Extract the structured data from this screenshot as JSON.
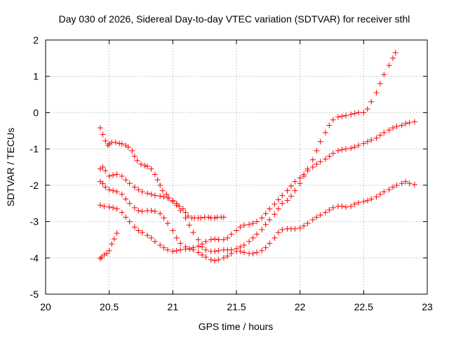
{
  "chart_data": {
    "type": "scatter",
    "title": "Day 030 of 2026, Sidereal Day-to-day VTEC variation (SDTVAR) for receiver sthl",
    "xlabel": "GPS time / hours",
    "ylabel": "SDTVAR / TECUs",
    "xlim": [
      20,
      23
    ],
    "ylim": [
      -5,
      2
    ],
    "xticks": [
      20,
      20.5,
      21,
      21.5,
      22,
      22.5,
      23
    ],
    "xtick_labels": [
      "20",
      "20.5",
      "21",
      "21.5",
      "22",
      "22.5",
      "23"
    ],
    "yticks": [
      -5,
      -4,
      -3,
      -2,
      -1,
      0,
      1,
      2
    ],
    "ytick_labels": [
      "-5",
      "-4",
      "-3",
      "-2",
      "-1",
      "0",
      "1",
      "2"
    ],
    "grid": true,
    "marker": "+",
    "color": "#ff0000",
    "series": [
      {
        "x": [
          20.43,
          20.45,
          20.47,
          20.49,
          20.5,
          20.52,
          20.55,
          20.58,
          20.6,
          20.63,
          20.65,
          20.68,
          20.7,
          20.72,
          20.75,
          20.78,
          20.8,
          20.83,
          20.86,
          20.88,
          20.9,
          20.92,
          20.95,
          20.97,
          21.0,
          21.03,
          21.05,
          21.08,
          21.1,
          21.12,
          21.15,
          21.17,
          21.2,
          21.22,
          21.25,
          21.28,
          21.3,
          21.33,
          21.35,
          21.38,
          21.4
        ],
        "y": [
          -0.42,
          -0.6,
          -0.78,
          -0.9,
          -0.86,
          -0.82,
          -0.82,
          -0.85,
          -0.86,
          -0.9,
          -0.95,
          -1.05,
          -1.2,
          -1.32,
          -1.42,
          -1.46,
          -1.48,
          -1.55,
          -1.7,
          -1.85,
          -2.0,
          -2.15,
          -2.25,
          -2.35,
          -2.42,
          -2.5,
          -2.58,
          -2.65,
          -2.75,
          -2.85,
          -2.9,
          -2.9,
          -2.9,
          -2.9,
          -2.88,
          -2.88,
          -2.9,
          -2.9,
          -2.88,
          -2.88,
          -2.88
        ]
      },
      {
        "x": [
          20.43,
          20.45,
          20.47,
          20.5,
          20.53,
          20.56,
          20.6,
          20.63,
          20.66,
          20.7,
          20.73,
          20.76,
          20.8,
          20.83,
          20.86,
          20.9,
          20.93,
          20.96,
          21.0,
          21.03,
          21.06,
          21.1,
          21.13,
          21.16,
          21.2,
          21.23,
          21.26,
          21.3,
          21.33,
          21.36,
          21.4,
          21.43,
          21.46,
          21.5,
          21.53,
          21.56,
          21.6,
          21.63,
          21.66,
          21.7,
          21.73,
          21.76,
          21.8,
          21.83,
          21.86,
          21.9,
          21.93,
          21.96,
          22.0,
          22.03,
          22.06,
          22.1,
          22.13,
          22.16,
          22.2,
          22.23,
          22.26,
          22.3,
          22.33,
          22.36,
          22.4,
          22.43,
          22.46,
          22.5,
          22.53,
          22.56,
          22.6,
          22.63,
          22.66,
          22.7,
          22.73,
          22.75
        ],
        "y": [
          -1.55,
          -1.5,
          -1.6,
          -1.75,
          -1.72,
          -1.7,
          -1.75,
          -1.85,
          -1.95,
          -2.05,
          -2.12,
          -2.18,
          -2.22,
          -2.25,
          -2.28,
          -2.3,
          -2.32,
          -2.35,
          -2.45,
          -2.55,
          -2.7,
          -2.9,
          -3.1,
          -3.3,
          -3.5,
          -3.7,
          -3.78,
          -3.82,
          -3.82,
          -3.8,
          -3.78,
          -3.78,
          -3.78,
          -3.75,
          -3.7,
          -3.65,
          -3.55,
          -3.45,
          -3.35,
          -3.22,
          -3.08,
          -2.95,
          -2.8,
          -2.65,
          -2.5,
          -2.42,
          -2.3,
          -2.15,
          -1.95,
          -1.75,
          -1.55,
          -1.3,
          -1.05,
          -0.8,
          -0.55,
          -0.35,
          -0.2,
          -0.12,
          -0.1,
          -0.08,
          -0.05,
          -0.02,
          0.0,
          0.0,
          0.1,
          0.3,
          0.55,
          0.8,
          1.05,
          1.3,
          1.5,
          1.65
        ]
      },
      {
        "x": [
          20.43,
          20.45,
          20.47,
          20.5,
          20.53,
          20.56,
          20.6,
          20.63,
          20.66,
          20.7,
          20.73,
          20.76,
          20.8,
          20.83,
          20.86,
          20.9,
          20.93,
          20.96,
          21.0,
          21.03,
          21.06,
          21.1,
          21.13,
          21.16,
          21.2,
          21.23,
          21.26,
          21.3,
          21.33,
          21.36,
          21.4,
          21.43,
          21.46,
          21.5,
          21.53,
          21.56,
          21.6,
          21.63,
          21.66,
          21.7,
          21.73,
          21.76,
          21.8,
          21.83,
          21.86,
          21.9,
          21.93,
          21.96,
          22.0,
          22.03,
          22.06,
          22.1,
          22.13,
          22.16,
          22.2,
          22.23,
          22.26,
          22.3,
          22.33,
          22.36,
          22.4,
          22.43,
          22.46,
          22.5,
          22.53,
          22.56,
          22.6,
          22.63,
          22.66,
          22.7,
          22.73,
          22.76,
          22.8,
          22.83,
          22.86,
          22.9
        ],
        "y": [
          -1.9,
          -1.95,
          -2.05,
          -2.12,
          -2.15,
          -2.18,
          -2.25,
          -2.38,
          -2.5,
          -2.62,
          -2.7,
          -2.72,
          -2.7,
          -2.7,
          -2.72,
          -2.78,
          -2.9,
          -3.05,
          -3.25,
          -3.45,
          -3.6,
          -3.7,
          -3.75,
          -3.72,
          -3.68,
          -3.62,
          -3.55,
          -3.5,
          -3.48,
          -3.5,
          -3.5,
          -3.45,
          -3.35,
          -3.25,
          -3.15,
          -3.1,
          -3.08,
          -3.05,
          -3.0,
          -2.9,
          -2.78,
          -2.65,
          -2.52,
          -2.4,
          -2.28,
          -2.15,
          -2.02,
          -1.9,
          -1.8,
          -1.7,
          -1.6,
          -1.5,
          -1.42,
          -1.35,
          -1.28,
          -1.2,
          -1.12,
          -1.05,
          -1.02,
          -1.0,
          -0.98,
          -0.95,
          -0.9,
          -0.85,
          -0.8,
          -0.75,
          -0.7,
          -0.62,
          -0.55,
          -0.48,
          -0.42,
          -0.38,
          -0.35,
          -0.3,
          -0.28,
          -0.25
        ]
      },
      {
        "x": [
          20.43,
          20.46,
          20.5,
          20.53,
          20.56,
          20.6,
          20.63,
          20.66,
          20.7,
          20.73,
          20.76,
          20.8,
          20.83,
          20.86,
          20.9,
          20.93,
          20.96,
          21.0,
          21.03,
          21.06,
          21.1,
          21.13,
          21.16,
          21.2,
          21.23,
          21.26,
          21.3,
          21.33,
          21.36,
          21.4,
          21.43,
          21.46,
          21.5,
          21.53,
          21.56,
          21.6,
          21.63,
          21.66,
          21.7,
          21.73,
          21.76,
          21.8,
          21.83,
          21.86,
          21.9,
          21.93,
          21.96,
          22.0,
          22.03,
          22.06,
          22.1,
          22.13,
          22.16,
          22.2,
          22.23,
          22.26,
          22.3,
          22.33,
          22.36,
          22.4,
          22.43,
          22.46,
          22.5,
          22.53,
          22.56,
          22.6,
          22.63,
          22.66,
          22.7,
          22.73,
          22.76,
          22.8,
          22.83,
          22.86,
          22.9
        ],
        "y": [
          -2.55,
          -2.58,
          -2.6,
          -2.62,
          -2.65,
          -2.75,
          -2.88,
          -3.0,
          -3.15,
          -3.25,
          -3.3,
          -3.38,
          -3.45,
          -3.55,
          -3.65,
          -3.72,
          -3.78,
          -3.82,
          -3.8,
          -3.78,
          -3.76,
          -3.75,
          -3.78,
          -3.85,
          -3.92,
          -3.98,
          -4.05,
          -4.08,
          -4.05,
          -4.0,
          -3.95,
          -3.88,
          -3.82,
          -3.82,
          -3.85,
          -3.88,
          -3.88,
          -3.85,
          -3.8,
          -3.72,
          -3.6,
          -3.45,
          -3.3,
          -3.22,
          -3.2,
          -3.2,
          -3.2,
          -3.18,
          -3.12,
          -3.05,
          -2.95,
          -2.88,
          -2.82,
          -2.75,
          -2.68,
          -2.62,
          -2.58,
          -2.58,
          -2.6,
          -2.58,
          -2.52,
          -2.48,
          -2.45,
          -2.42,
          -2.38,
          -2.32,
          -2.25,
          -2.18,
          -2.12,
          -2.05,
          -2.0,
          -1.95,
          -1.9,
          -1.95,
          -1.98
        ]
      },
      {
        "x": [
          20.43,
          20.44,
          20.46,
          20.48,
          20.5,
          20.52,
          20.54,
          20.56
        ],
        "y": [
          -4.02,
          -3.98,
          -3.92,
          -3.88,
          -3.8,
          -3.62,
          -3.48,
          -3.32
        ]
      }
    ]
  }
}
